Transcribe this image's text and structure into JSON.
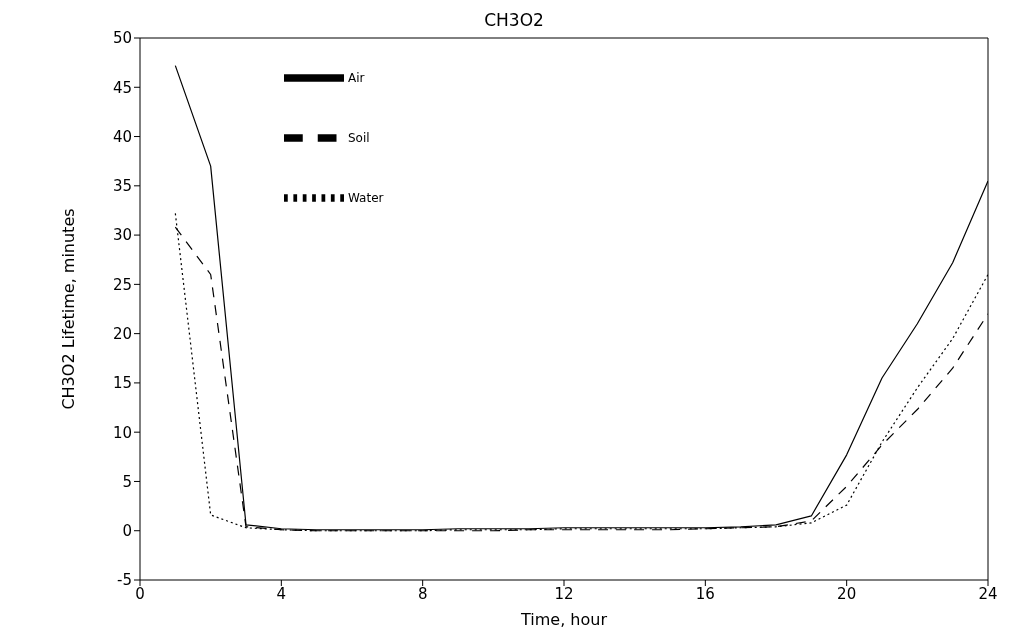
{
  "chart_data": {
    "type": "line",
    "title": "CH3O2",
    "xlabel": "Time, hour",
    "ylabel": "CH3O2 Lifetime, minutes",
    "x": [
      1,
      2,
      3,
      4,
      5,
      6,
      7,
      8,
      9,
      10,
      11,
      12,
      13,
      14,
      15,
      16,
      17,
      18,
      19,
      20,
      21,
      22,
      23,
      24
    ],
    "xlim": [
      0,
      24
    ],
    "xticks": [
      0,
      4,
      8,
      12,
      16,
      20,
      24
    ],
    "ylim": [
      -5,
      50
    ],
    "yticks": [
      -5,
      0,
      5,
      10,
      15,
      20,
      25,
      30,
      35,
      40,
      45,
      50
    ],
    "grid": false,
    "legend": "top left",
    "marker": "none",
    "series": [
      {
        "name": "Air",
        "color": "#000000",
        "line_style": "solid",
        "values": [
          47.2,
          37,
          0.6,
          0.2,
          0.1,
          0.1,
          0.1,
          0.1,
          0.2,
          0.2,
          0.2,
          0.3,
          0.3,
          0.3,
          0.3,
          0.3,
          0.4,
          0.6,
          1.5,
          7.7,
          15.5,
          21,
          27.2,
          35.5
        ]
      },
      {
        "name": "Water",
        "color": "#000000",
        "line_style": "dotted",
        "values": [
          32.2,
          1.6,
          0.3,
          0.1,
          0,
          0,
          0,
          0,
          0.1,
          0.1,
          0.1,
          0.2,
          0.2,
          0.2,
          0.2,
          0.2,
          0.3,
          0.4,
          0.8,
          2.6,
          9,
          14.5,
          19.5,
          26
        ]
      },
      {
        "name": "Soil",
        "color": "#000000",
        "line_style": "dashed",
        "values": [
          30.8,
          26,
          0.4,
          0.1,
          0,
          0,
          0,
          0,
          0,
          0,
          0.1,
          0.1,
          0.1,
          0.1,
          0.1,
          0.2,
          0.3,
          0.4,
          1,
          4.5,
          8.7,
          12.3,
          16.5,
          22
        ]
      }
    ]
  }
}
